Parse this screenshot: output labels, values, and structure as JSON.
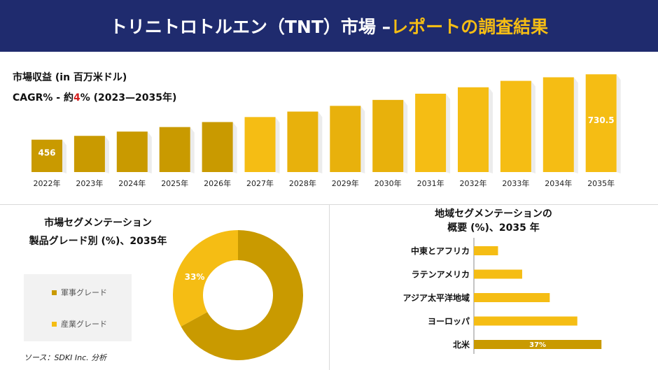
{
  "header": {
    "title_main": "トリニトロトルエン（TNT）市場 –",
    "title_highlight": "レポートの調査結果"
  },
  "revenue": {
    "label": "市場収益 (in 百万米ドル)",
    "cagr_prefix": "CAGR% - 約",
    "cagr_value": "4",
    "cagr_suffix": "% (2023—2035年)"
  },
  "segmentation": {
    "title_line1": "市場セグメンテーション",
    "title_line2": "製品グレード別 (%)、2035年",
    "legend": [
      {
        "label": "軍事グレード",
        "color": "#c99a00"
      },
      {
        "label": "産業グレード",
        "color": "#f5bd14"
      }
    ]
  },
  "regional": {
    "title_line1": "地域セグメンテーションの",
    "title_line2": "概要 (%)、2035 年"
  },
  "source": "ソース：SDKI Inc. 分析",
  "colors": {
    "dark_gold": "#c99a00",
    "bright_gold": "#f5bd14",
    "navy": "#1f2b6e",
    "red": "#d42020"
  },
  "chart_data": [
    {
      "type": "bar",
      "categories": [
        "2022年",
        "2023年",
        "2024年",
        "2025年",
        "2026年",
        "2027年",
        "2028年",
        "2029年",
        "2030年",
        "2031年",
        "2032年",
        "2033年",
        "2034年",
        "2035年"
      ],
      "values": [
        456,
        472,
        490,
        509,
        530,
        551,
        574,
        598,
        623,
        649,
        676,
        703,
        718,
        730.5
      ],
      "labels": {
        "0": "456",
        "13": "730.5"
      },
      "ylim": [
        320,
        740
      ]
    },
    {
      "type": "pie",
      "categories": [
        "軍事グレード",
        "産業グレード"
      ],
      "values": [
        67,
        33
      ],
      "labels": {
        "1": "33%"
      }
    },
    {
      "type": "bar",
      "orientation": "horizontal",
      "categories": [
        "中東とアフリカ",
        "ラテンアメリカ",
        "アジア太平洋地域",
        "ヨーロッパ",
        "北米"
      ],
      "values": [
        7,
        14,
        22,
        30,
        37
      ],
      "labels": {
        "4": "37%"
      },
      "xlim": [
        0,
        40
      ]
    }
  ]
}
